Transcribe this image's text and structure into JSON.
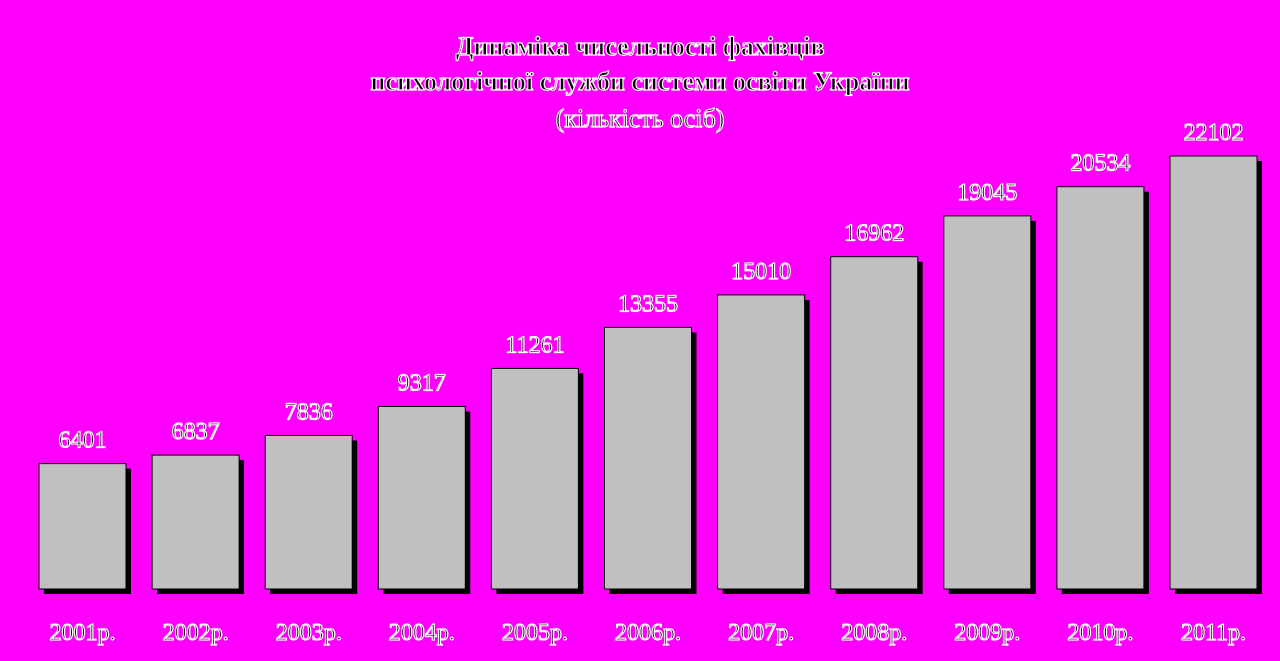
{
  "colors": {
    "background": "#ff00ff",
    "bar_fill": "#c0c0c0",
    "bar_shadow": "#000000",
    "text_outline": "#ffffff"
  },
  "chart_data": {
    "type": "bar",
    "title": "Динаміка чисельності фахівців психологічної служби системи освіти України",
    "title_lines": [
      "Динаміка чисельності фахівців",
      "психологічної служби системи освіти України"
    ],
    "subtitle": "(кількість осіб)",
    "xlabel": "",
    "ylabel": "",
    "categories": [
      "2001р.",
      "2002р.",
      "2003р.",
      "2004р.",
      "2005р.",
      "2006р.",
      "2007р.",
      "2008р.",
      "2009р.",
      "2010р.",
      "2011р."
    ],
    "values": [
      6401,
      6837,
      7836,
      9317,
      11261,
      13355,
      15010,
      16962,
      19045,
      20534,
      22102
    ],
    "value_labels": [
      "6401",
      "6837",
      "7836",
      "9317",
      "11261",
      "13355",
      "15010",
      "16962",
      "19045",
      "20534",
      "22102"
    ],
    "ylim": [
      0,
      22102
    ],
    "grid": false,
    "legend": "none"
  }
}
